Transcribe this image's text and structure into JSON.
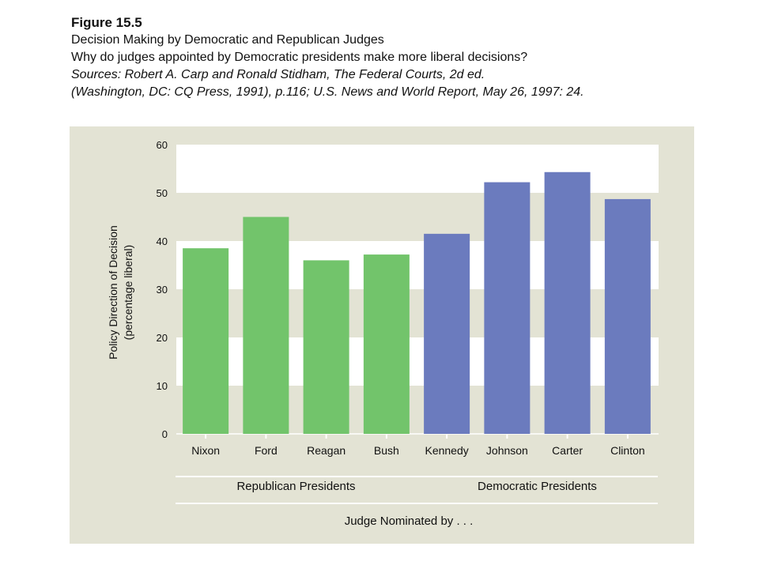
{
  "header": {
    "figure_label": "Figure 15.5",
    "title": "Decision Making by Democratic and Republican Judges",
    "question": "Why do judges appointed by Democratic presidents make more liberal decisions?",
    "sources_line1": "Sources: Robert A. Carp and Ronald Stidham, The Federal Courts, 2d ed.",
    "sources_line2": "(Washington, DC: CQ Press, 1991), p.116; U.S. News and World Report, May 26, 1997: 24."
  },
  "chart_data": {
    "type": "bar",
    "categories": [
      "Nixon",
      "Ford",
      "Reagan",
      "Bush",
      "Kennedy",
      "Johnson",
      "Carter",
      "Clinton"
    ],
    "values": [
      38.5,
      45,
      36,
      37.2,
      41.5,
      52.2,
      54.3,
      48.7
    ],
    "groups": [
      {
        "label": "Republican Presidents",
        "categories": [
          "Nixon",
          "Ford",
          "Reagan",
          "Bush"
        ],
        "color": "#72c46b"
      },
      {
        "label": "Democratic Presidents",
        "categories": [
          "Kennedy",
          "Johnson",
          "Carter",
          "Clinton"
        ],
        "color": "#6b7bbe"
      }
    ],
    "ylabel_line1": "Policy Direction of Decision",
    "ylabel_line2": "(percentage liberal)",
    "xlabel": "Judge Nominated by . . .",
    "ylim": [
      0,
      60
    ],
    "yticks": [
      0,
      10,
      20,
      30,
      40,
      50,
      60
    ],
    "grid": "alternating white bands",
    "background": "#e3e3d4",
    "band_color": "#ffffff"
  }
}
